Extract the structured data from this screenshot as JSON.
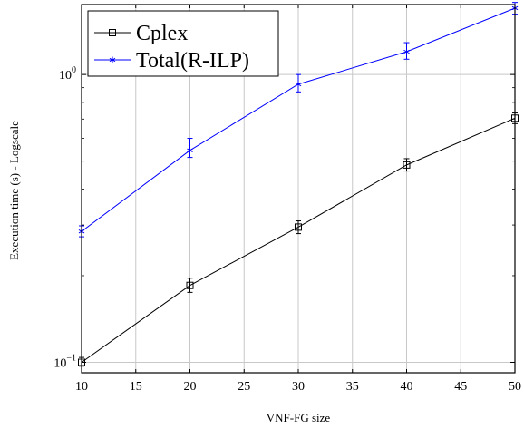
{
  "chart_data": {
    "type": "line",
    "xlabel": "VNF-FG size",
    "ylabel": "Execution time (s) - Logscale",
    "x": [
      10,
      20,
      30,
      40,
      50
    ],
    "xlim": [
      10,
      50
    ],
    "xticks": [
      "10",
      "15",
      "20",
      "25",
      "30",
      "35",
      "40",
      "45",
      "50"
    ],
    "xtick_values": [
      10,
      15,
      20,
      25,
      30,
      35,
      40,
      45,
      50
    ],
    "ylim": [
      0.092,
      1.75
    ],
    "yscale": "log",
    "yticks": [
      {
        "value": 1,
        "base": "10",
        "exp": "0"
      },
      {
        "value": 0.1,
        "base": "10",
        "exp": "−1"
      }
    ],
    "grid": true,
    "legend_position": "top-left",
    "series": [
      {
        "name": "Cplex",
        "color": "#000000",
        "marker": "square",
        "values": [
          0.1,
          0.185,
          0.295,
          0.485,
          0.705
        ],
        "err_low": [
          0.097,
          0.175,
          0.28,
          0.462,
          0.675
        ],
        "err_high": [
          0.104,
          0.196,
          0.31,
          0.51,
          0.735
        ]
      },
      {
        "name": "Total(R-ILP)",
        "color": "#0000ff",
        "marker": "star",
        "values": [
          0.285,
          0.545,
          0.925,
          1.2,
          1.7
        ],
        "err_low": [
          0.273,
          0.515,
          0.87,
          1.13,
          1.62
        ],
        "err_high": [
          0.298,
          0.6,
          1.0,
          1.29,
          1.78
        ]
      }
    ]
  }
}
